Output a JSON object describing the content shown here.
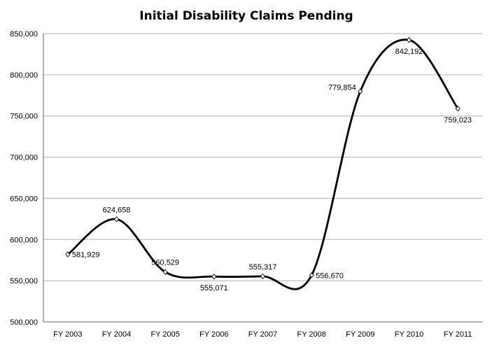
{
  "chart_data": {
    "type": "line",
    "title": "Initial Disability Claims Pending",
    "xlabel": "",
    "ylabel": "",
    "categories": [
      "FY 2003",
      "FY 2004",
      "FY 2005",
      "FY 2006",
      "FY 2007",
      "FY 2008",
      "FY 2009",
      "FY 2010",
      "FY 2011"
    ],
    "values": [
      581929,
      624658,
      560529,
      555071,
      555317,
      556670,
      779854,
      842192,
      759023
    ],
    "data_labels": [
      "581,929",
      "624,658",
      "560,529",
      "555,071",
      "555,317",
      "556,670",
      "779,854",
      "842,192",
      "759,023"
    ],
    "ylim": [
      500000,
      850000
    ],
    "yticks": [
      500000,
      550000,
      600000,
      650000,
      700000,
      750000,
      800000,
      850000
    ],
    "ytick_labels": [
      "500,000",
      "550,000",
      "600,000",
      "650,000",
      "700,000",
      "750,000",
      "800,000",
      "850,000"
    ],
    "grid": true,
    "smoothed": true,
    "markers": "diamond",
    "line_color": "#000000",
    "grid_color": "#c0c0c0"
  }
}
